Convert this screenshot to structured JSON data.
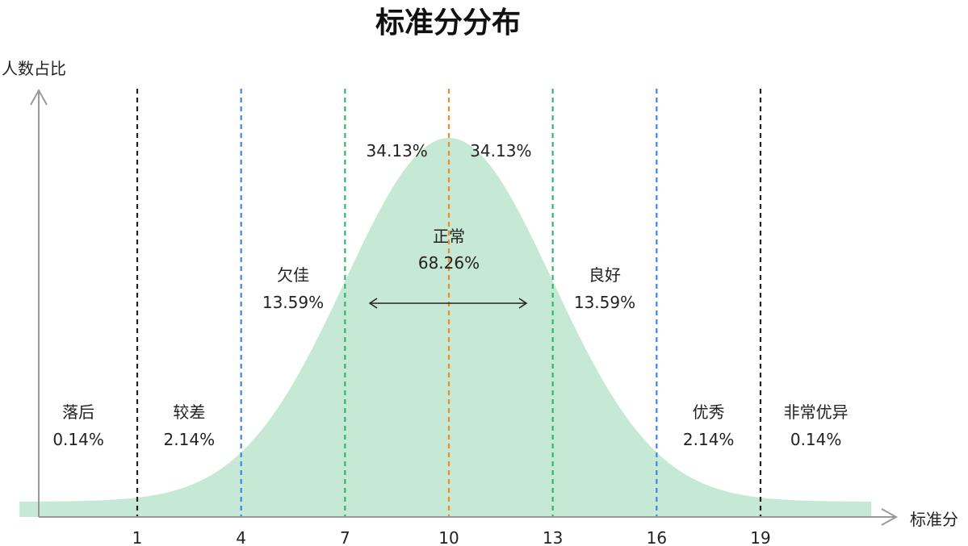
{
  "chart_data": {
    "type": "area",
    "title": "标准分分布",
    "ylabel": "人数占比",
    "xlabel": "标准分",
    "xlim": [
      -2.4,
      22.2
    ],
    "ticks": [
      1,
      4,
      7,
      10,
      13,
      16,
      19
    ],
    "distribution": {
      "mean": 10,
      "sd": 3
    },
    "fill_color": "#c6e9d5",
    "boundaries": [
      {
        "x": 1,
        "color": "#222222"
      },
      {
        "x": 4,
        "color": "#3b86e6"
      },
      {
        "x": 7,
        "color": "#35b56e"
      },
      {
        "x": 10,
        "color": "#f08a24"
      },
      {
        "x": 13,
        "color": "#35b56e"
      },
      {
        "x": 16,
        "color": "#3b86e6"
      },
      {
        "x": 19,
        "color": "#222222"
      }
    ],
    "regions": [
      {
        "name": "落后",
        "value": "0.14%",
        "range": [
          -2.4,
          1
        ]
      },
      {
        "name": "较差",
        "value": "2.14%",
        "range": [
          1,
          4
        ]
      },
      {
        "name": "欠佳",
        "value": "13.59%",
        "range": [
          4,
          7
        ]
      },
      {
        "name": "良好",
        "value": "13.59%",
        "range": [
          13,
          16
        ]
      },
      {
        "name": "优秀",
        "value": "2.14%",
        "range": [
          16,
          19
        ]
      },
      {
        "name": "非常优异",
        "value": "0.14%",
        "range": [
          19,
          22.2
        ]
      }
    ],
    "center": {
      "name": "正常",
      "value": "68.26%",
      "range": [
        7,
        13
      ]
    },
    "half_labels": [
      "34.13%",
      "34.13%"
    ]
  }
}
